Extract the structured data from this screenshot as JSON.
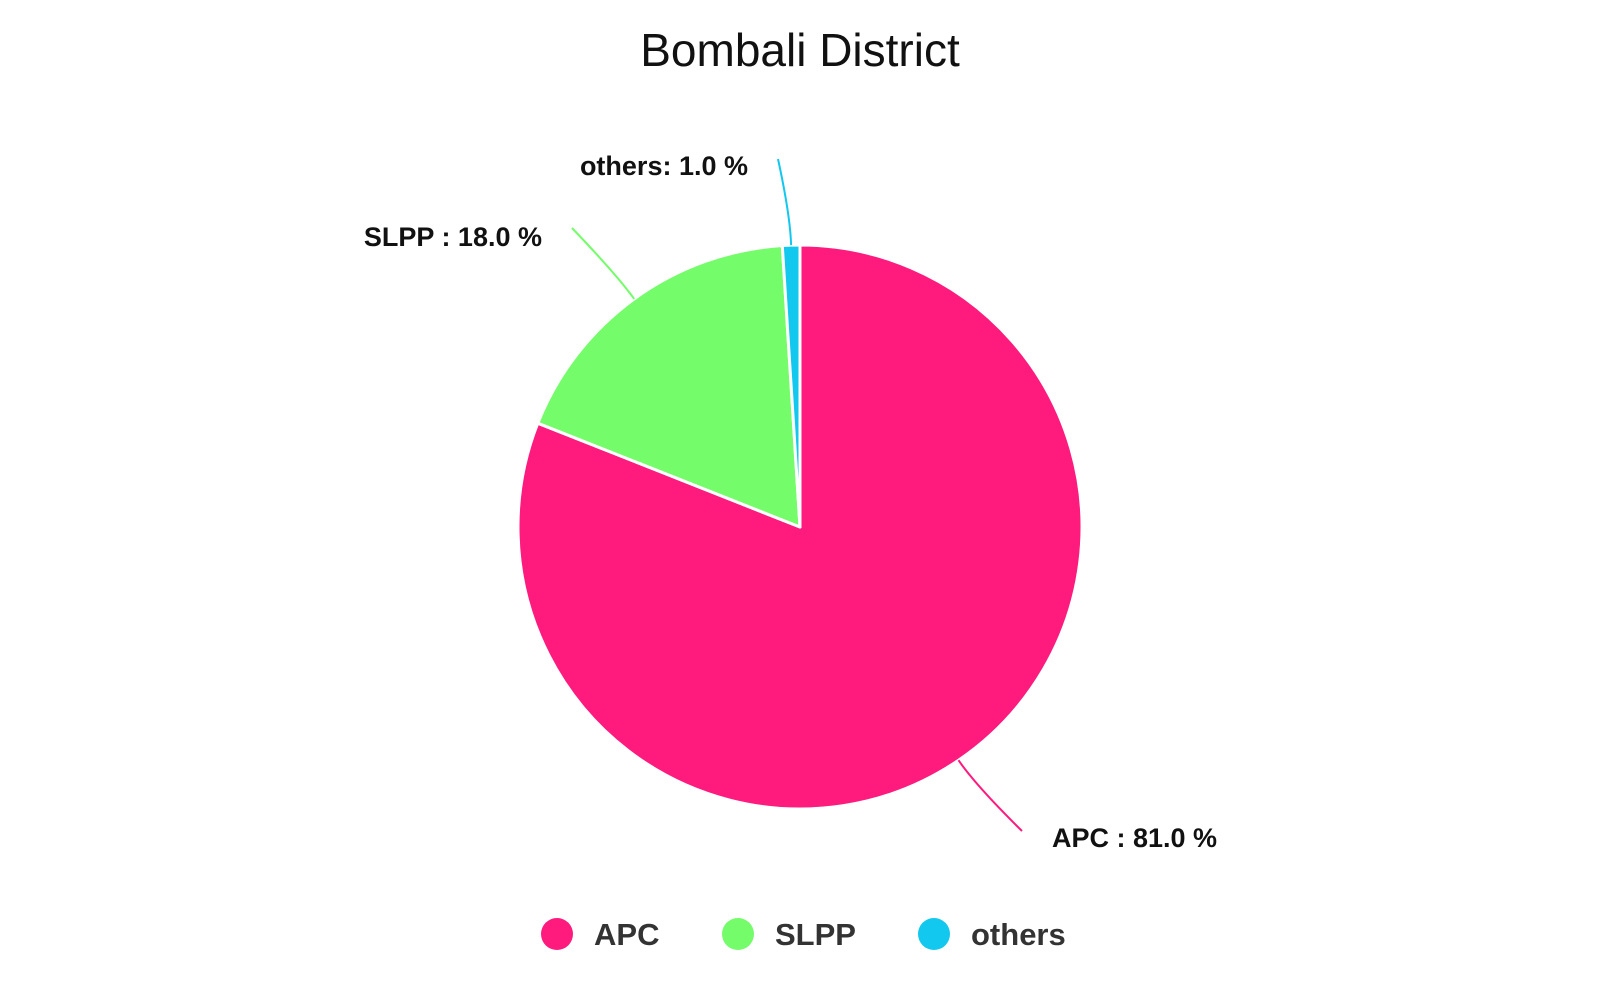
{
  "chart_data": {
    "type": "pie",
    "title": "Bombali District",
    "slices": [
      {
        "name": "APC",
        "value": 81.0,
        "label": "APC : 81.0 %",
        "color": "#ff1a7d"
      },
      {
        "name": "SLPP",
        "value": 18.0,
        "label": "SLPP : 18.0 %",
        "color": "#74fc6a"
      },
      {
        "name": "others",
        "value": 1.0,
        "label": "others: 1.0 %",
        "color": "#12c8ee"
      }
    ],
    "start_angle_deg": 0,
    "direction": "clockwise",
    "legend": {
      "position": "bottom",
      "items": [
        "APC",
        "SLPP",
        "others"
      ]
    }
  }
}
